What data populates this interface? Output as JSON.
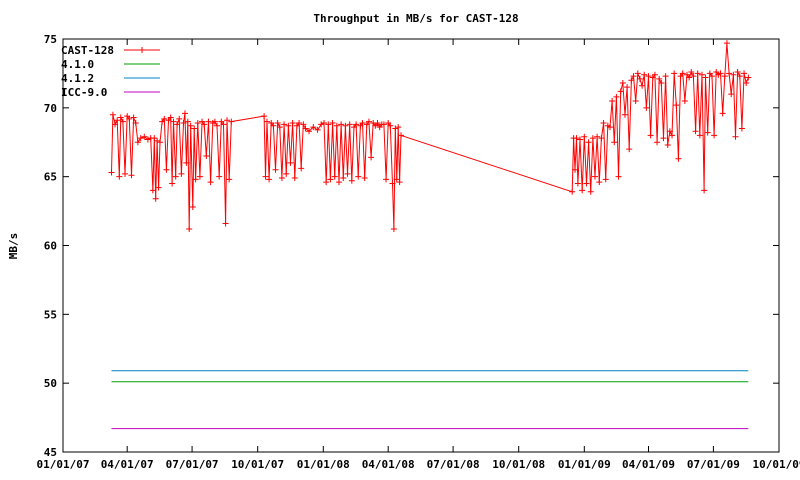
{
  "chart_data": {
    "type": "line",
    "title": "Throughput in MB/s for CAST-128",
    "xlabel": "",
    "ylabel": "MB/s",
    "ylim": [
      45,
      75
    ],
    "xlim": [
      "2007-01-01",
      "2009-10-01"
    ],
    "yticks": [
      "45",
      "50",
      "55",
      "60",
      "65",
      "70",
      "75"
    ],
    "xticks": [
      {
        "date": "2007-01-01",
        "label": "01/01/07"
      },
      {
        "date": "2007-04-01",
        "label": "04/01/07"
      },
      {
        "date": "2007-07-01",
        "label": "07/01/07"
      },
      {
        "date": "2007-10-01",
        "label": "10/01/07"
      },
      {
        "date": "2008-01-01",
        "label": "01/01/08"
      },
      {
        "date": "2008-04-01",
        "label": "04/01/08"
      },
      {
        "date": "2008-07-01",
        "label": "07/01/08"
      },
      {
        "date": "2008-10-01",
        "label": "10/01/08"
      },
      {
        "date": "2009-01-01",
        "label": "01/01/09"
      },
      {
        "date": "2009-04-01",
        "label": "04/01/09"
      },
      {
        "date": "2009-07-01",
        "label": "07/01/09"
      },
      {
        "date": "2009-10-01",
        "label": "10/01/09"
      }
    ],
    "legend_position": "top-left",
    "grid": false,
    "series": [
      {
        "name": "CAST-128",
        "color": "#ff0000",
        "marker": "plus",
        "points": [
          [
            "2007-03-10",
            65.3
          ],
          [
            "2007-03-12",
            69.5
          ],
          [
            "2007-03-15",
            68.8
          ],
          [
            "2007-03-18",
            69.1
          ],
          [
            "2007-03-21",
            65.0
          ],
          [
            "2007-03-23",
            69.3
          ],
          [
            "2007-03-26",
            69.0
          ],
          [
            "2007-03-29",
            65.2
          ],
          [
            "2007-04-01",
            69.4
          ],
          [
            "2007-04-04",
            69.2
          ],
          [
            "2007-04-07",
            65.1
          ],
          [
            "2007-04-10",
            69.3
          ],
          [
            "2007-04-13",
            68.9
          ],
          [
            "2007-04-16",
            67.5
          ],
          [
            "2007-04-20",
            67.8
          ],
          [
            "2007-04-25",
            67.9
          ],
          [
            "2007-04-30",
            67.7
          ],
          [
            "2007-05-04",
            67.8
          ],
          [
            "2007-05-07",
            64.0
          ],
          [
            "2007-05-09",
            67.8
          ],
          [
            "2007-05-11",
            63.4
          ],
          [
            "2007-05-13",
            67.6
          ],
          [
            "2007-05-15",
            64.2
          ],
          [
            "2007-05-17",
            67.5
          ],
          [
            "2007-05-20",
            69.0
          ],
          [
            "2007-05-23",
            69.2
          ],
          [
            "2007-05-26",
            65.5
          ],
          [
            "2007-05-29",
            69.1
          ],
          [
            "2007-06-01",
            69.3
          ],
          [
            "2007-06-03",
            64.5
          ],
          [
            "2007-06-05",
            69.0
          ],
          [
            "2007-06-08",
            65.0
          ],
          [
            "2007-06-10",
            68.8
          ],
          [
            "2007-06-13",
            69.2
          ],
          [
            "2007-06-16",
            65.2
          ],
          [
            "2007-06-19",
            68.9
          ],
          [
            "2007-06-21",
            69.6
          ],
          [
            "2007-06-23",
            66.0
          ],
          [
            "2007-06-25",
            69.0
          ],
          [
            "2007-06-27",
            61.2
          ],
          [
            "2007-06-29",
            68.7
          ],
          [
            "2007-07-02",
            62.8
          ],
          [
            "2007-07-04",
            68.5
          ],
          [
            "2007-07-06",
            64.8
          ],
          [
            "2007-07-09",
            68.9
          ],
          [
            "2007-07-12",
            65.0
          ],
          [
            "2007-07-15",
            69.0
          ],
          [
            "2007-07-18",
            68.8
          ],
          [
            "2007-07-21",
            66.5
          ],
          [
            "2007-07-24",
            69.0
          ],
          [
            "2007-07-27",
            64.6
          ],
          [
            "2007-07-30",
            68.9
          ],
          [
            "2007-08-02",
            69.0
          ],
          [
            "2007-08-05",
            68.7
          ],
          [
            "2007-08-08",
            65.0
          ],
          [
            "2007-08-11",
            69.0
          ],
          [
            "2007-08-14",
            68.8
          ],
          [
            "2007-08-17",
            61.6
          ],
          [
            "2007-08-19",
            69.1
          ],
          [
            "2007-08-22",
            64.8
          ],
          [
            "2007-08-25",
            69.0
          ],
          [
            "2007-10-10",
            69.4
          ],
          [
            "2007-10-12",
            65.0
          ],
          [
            "2007-10-14",
            69.0
          ],
          [
            "2007-10-17",
            64.8
          ],
          [
            "2007-10-20",
            68.9
          ],
          [
            "2007-10-23",
            68.7
          ],
          [
            "2007-10-26",
            65.5
          ],
          [
            "2007-10-29",
            68.9
          ],
          [
            "2007-11-01",
            68.6
          ],
          [
            "2007-11-04",
            64.9
          ],
          [
            "2007-11-07",
            68.8
          ],
          [
            "2007-11-10",
            65.2
          ],
          [
            "2007-11-13",
            68.7
          ],
          [
            "2007-11-16",
            66.0
          ],
          [
            "2007-11-19",
            68.9
          ],
          [
            "2007-11-22",
            64.9
          ],
          [
            "2007-11-25",
            68.7
          ],
          [
            "2007-11-28",
            68.9
          ],
          [
            "2007-12-01",
            65.6
          ],
          [
            "2007-12-04",
            68.8
          ],
          [
            "2007-12-07",
            68.5
          ],
          [
            "2007-12-12",
            68.3
          ],
          [
            "2007-12-18",
            68.6
          ],
          [
            "2007-12-24",
            68.4
          ],
          [
            "2007-12-29",
            68.8
          ],
          [
            "2008-01-02",
            68.9
          ],
          [
            "2008-01-05",
            64.6
          ],
          [
            "2008-01-08",
            68.8
          ],
          [
            "2008-01-11",
            64.8
          ],
          [
            "2008-01-14",
            68.9
          ],
          [
            "2008-01-17",
            65.0
          ],
          [
            "2008-01-20",
            68.7
          ],
          [
            "2008-01-23",
            64.6
          ],
          [
            "2008-01-26",
            68.8
          ],
          [
            "2008-01-29",
            64.9
          ],
          [
            "2008-02-01",
            68.7
          ],
          [
            "2008-02-04",
            65.2
          ],
          [
            "2008-02-07",
            68.8
          ],
          [
            "2008-02-10",
            64.7
          ],
          [
            "2008-02-13",
            68.6
          ],
          [
            "2008-02-16",
            68.8
          ],
          [
            "2008-02-19",
            65.0
          ],
          [
            "2008-02-22",
            68.7
          ],
          [
            "2008-02-25",
            68.9
          ],
          [
            "2008-02-28",
            64.9
          ],
          [
            "2008-03-02",
            68.8
          ],
          [
            "2008-03-05",
            69.0
          ],
          [
            "2008-03-08",
            66.4
          ],
          [
            "2008-03-11",
            68.9
          ],
          [
            "2008-03-14",
            68.7
          ],
          [
            "2008-03-17",
            68.9
          ],
          [
            "2008-03-20",
            68.6
          ],
          [
            "2008-03-23",
            68.8
          ],
          [
            "2008-03-26",
            68.8
          ],
          [
            "2008-03-29",
            64.8
          ],
          [
            "2008-04-01",
            68.9
          ],
          [
            "2008-04-04",
            68.7
          ],
          [
            "2008-04-07",
            64.5
          ],
          [
            "2008-04-09",
            61.2
          ],
          [
            "2008-04-11",
            68.5
          ],
          [
            "2008-04-13",
            64.8
          ],
          [
            "2008-04-15",
            68.6
          ],
          [
            "2008-04-17",
            64.6
          ],
          [
            "2008-04-19",
            68.0
          ],
          [
            "2008-12-15",
            63.9
          ],
          [
            "2008-12-17",
            67.8
          ],
          [
            "2008-12-19",
            65.5
          ],
          [
            "2008-12-21",
            67.8
          ],
          [
            "2008-12-23",
            64.5
          ],
          [
            "2008-12-26",
            67.7
          ],
          [
            "2008-12-29",
            64.0
          ],
          [
            "2009-01-01",
            67.9
          ],
          [
            "2009-01-04",
            64.5
          ],
          [
            "2009-01-07",
            67.5
          ],
          [
            "2009-01-10",
            63.9
          ],
          [
            "2009-01-13",
            67.8
          ],
          [
            "2009-01-16",
            65.0
          ],
          [
            "2009-01-19",
            67.9
          ],
          [
            "2009-01-22",
            64.6
          ],
          [
            "2009-01-25",
            67.8
          ],
          [
            "2009-01-28",
            68.9
          ],
          [
            "2009-01-31",
            64.8
          ],
          [
            "2009-02-03",
            68.7
          ],
          [
            "2009-02-06",
            68.6
          ],
          [
            "2009-02-09",
            70.5
          ],
          [
            "2009-02-12",
            67.5
          ],
          [
            "2009-02-15",
            70.8
          ],
          [
            "2009-02-18",
            65.0
          ],
          [
            "2009-02-21",
            71.2
          ],
          [
            "2009-02-24",
            71.8
          ],
          [
            "2009-02-27",
            69.5
          ],
          [
            "2009-03-02",
            71.5
          ],
          [
            "2009-03-05",
            67.0
          ],
          [
            "2009-03-08",
            72.0
          ],
          [
            "2009-03-11",
            72.3
          ],
          [
            "2009-03-14",
            70.5
          ],
          [
            "2009-03-17",
            72.5
          ],
          [
            "2009-03-20",
            72.1
          ],
          [
            "2009-03-23",
            71.6
          ],
          [
            "2009-03-26",
            72.4
          ],
          [
            "2009-03-29",
            70.0
          ],
          [
            "2009-04-01",
            72.3
          ],
          [
            "2009-04-04",
            68.0
          ],
          [
            "2009-04-07",
            72.2
          ],
          [
            "2009-04-10",
            72.4
          ],
          [
            "2009-04-13",
            67.5
          ],
          [
            "2009-04-16",
            72.1
          ],
          [
            "2009-04-19",
            71.8
          ],
          [
            "2009-04-22",
            67.8
          ],
          [
            "2009-04-25",
            72.3
          ],
          [
            "2009-04-28",
            67.3
          ],
          [
            "2009-05-01",
            68.3
          ],
          [
            "2009-05-04",
            68.0
          ],
          [
            "2009-05-07",
            72.5
          ],
          [
            "2009-05-10",
            70.2
          ],
          [
            "2009-05-13",
            66.3
          ],
          [
            "2009-05-16",
            72.3
          ],
          [
            "2009-05-19",
            72.5
          ],
          [
            "2009-05-22",
            70.5
          ],
          [
            "2009-05-25",
            72.4
          ],
          [
            "2009-05-28",
            72.2
          ],
          [
            "2009-05-31",
            72.6
          ],
          [
            "2009-06-03",
            72.3
          ],
          [
            "2009-06-06",
            68.3
          ],
          [
            "2009-06-09",
            72.5
          ],
          [
            "2009-06-12",
            68.0
          ],
          [
            "2009-06-15",
            72.4
          ],
          [
            "2009-06-18",
            64.0
          ],
          [
            "2009-06-20",
            72.2
          ],
          [
            "2009-06-23",
            68.2
          ],
          [
            "2009-06-26",
            72.5
          ],
          [
            "2009-06-29",
            72.3
          ],
          [
            "2009-07-02",
            68.0
          ],
          [
            "2009-07-05",
            72.6
          ],
          [
            "2009-07-08",
            72.4
          ],
          [
            "2009-07-11",
            72.5
          ],
          [
            "2009-07-14",
            69.6
          ],
          [
            "2009-07-17",
            72.3
          ],
          [
            "2009-07-20",
            74.7
          ],
          [
            "2009-07-23",
            72.5
          ],
          [
            "2009-07-26",
            71.0
          ],
          [
            "2009-07-29",
            72.4
          ],
          [
            "2009-08-01",
            67.9
          ],
          [
            "2009-08-04",
            72.6
          ],
          [
            "2009-08-07",
            72.3
          ],
          [
            "2009-08-10",
            68.5
          ],
          [
            "2009-08-13",
            72.5
          ],
          [
            "2009-08-16",
            71.8
          ],
          [
            "2009-08-19",
            72.2
          ]
        ]
      },
      {
        "name": "4.1.0",
        "color": "#00a000",
        "points": [
          [
            "2007-03-10",
            50.1
          ],
          [
            "2009-08-19",
            50.1
          ]
        ]
      },
      {
        "name": "4.1.2",
        "color": "#0080c0",
        "points": [
          [
            "2007-03-10",
            50.9
          ],
          [
            "2009-08-19",
            50.9
          ]
        ]
      },
      {
        "name": "ICC-9.0",
        "color": "#c000c0",
        "points": [
          [
            "2007-03-10",
            46.7
          ],
          [
            "2009-08-19",
            46.7
          ]
        ]
      }
    ]
  }
}
